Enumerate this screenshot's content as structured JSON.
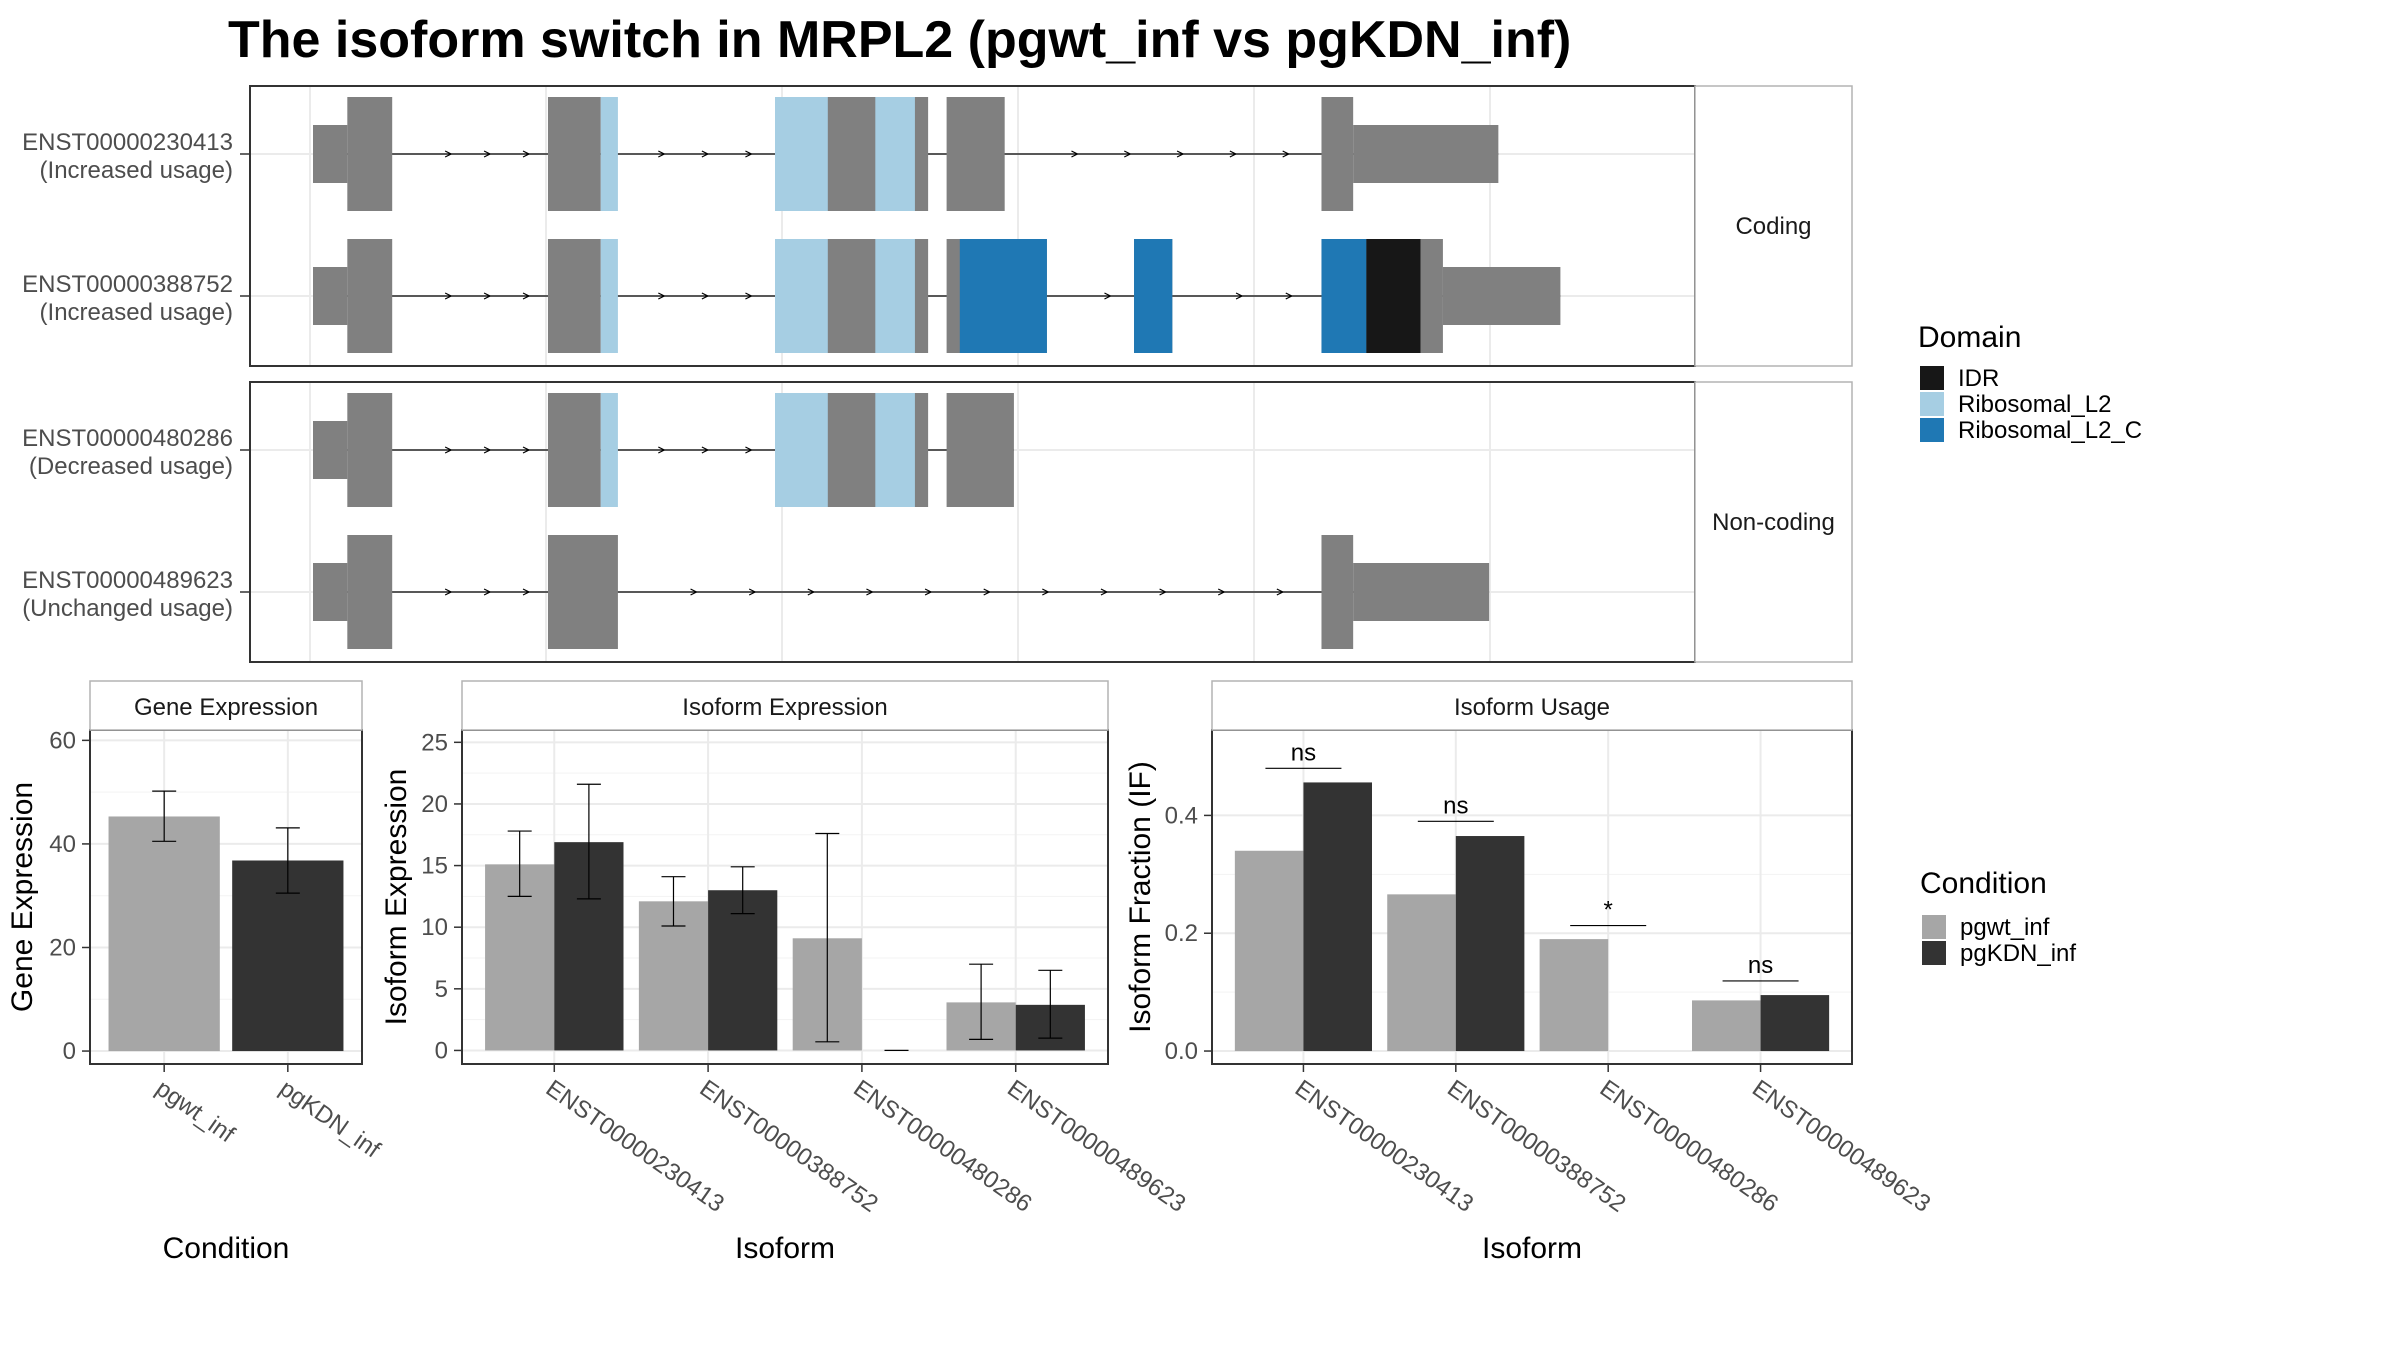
{
  "title": "The isoform switch in MRPL2 (pgwt_inf vs pgKDN_inf)",
  "colors": {
    "exon": "#808080",
    "grid": "#ebebeb",
    "strip_bg": "#ffffff",
    "panel_border": "#333333",
    "pgwt_inf": "#a6a6a6",
    "pgKDN_inf": "#333333"
  },
  "structure": {
    "x_range": [
      0,
      100
    ],
    "facets": [
      {
        "label": "Coding",
        "isoforms": [
          {
            "id": "ENST00000230413",
            "status": "(Increased usage)",
            "exons": [
              [
                0,
                2.6,
                "thin"
              ],
              [
                2.6,
                6,
                "thick"
              ],
              [
                17.8,
                21.8,
                "thick"
              ],
              [
                35,
                46.6,
                "thick"
              ],
              [
                48,
                52.4,
                "thick"
              ],
              [
                76.4,
                78.8,
                "thick"
              ],
              [
                78.8,
                89.8,
                "thin"
              ]
            ],
            "domains": [
              [
                21.8,
                23.1,
                "Ribosomal_L2"
              ],
              [
                35,
                39,
                "Ribosomal_L2"
              ],
              [
                42.6,
                45.6,
                "Ribosomal_L2"
              ]
            ]
          },
          {
            "id": "ENST00000388752",
            "status": "(Increased usage)",
            "exons": [
              [
                0,
                2.6,
                "thin"
              ],
              [
                2.6,
                6,
                "thick"
              ],
              [
                17.8,
                21.8,
                "thick"
              ],
              [
                35,
                46.6,
                "thick"
              ],
              [
                48,
                55.6,
                "thick"
              ],
              [
                62.2,
                65.1,
                "thick"
              ],
              [
                76.4,
                85.6,
                "thick"
              ],
              [
                85.6,
                94.5,
                "thin"
              ]
            ],
            "domains": [
              [
                21.8,
                23.1,
                "Ribosomal_L2"
              ],
              [
                35,
                39,
                "Ribosomal_L2"
              ],
              [
                42.6,
                45.6,
                "Ribosomal_L2"
              ],
              [
                49,
                55.6,
                "Ribosomal_L2_C"
              ],
              [
                62.2,
                65.1,
                "Ribosomal_L2_C"
              ],
              [
                76.4,
                79.8,
                "Ribosomal_L2_C"
              ],
              [
                79.8,
                83.9,
                "IDR"
              ]
            ]
          }
        ]
      },
      {
        "label": "Non-coding",
        "isoforms": [
          {
            "id": "ENST00000480286",
            "status": "(Decreased usage)",
            "exons": [
              [
                0,
                2.6,
                "thin"
              ],
              [
                2.6,
                6,
                "thick"
              ],
              [
                17.8,
                21.8,
                "thick"
              ],
              [
                35,
                46.6,
                "thick"
              ],
              [
                48,
                53.1,
                "thick"
              ]
            ],
            "domains": [
              [
                21.8,
                23.1,
                "Ribosomal_L2"
              ],
              [
                35,
                39,
                "Ribosomal_L2"
              ],
              [
                42.6,
                45.6,
                "Ribosomal_L2"
              ]
            ]
          },
          {
            "id": "ENST00000489623",
            "status": "(Unchanged usage)",
            "exons": [
              [
                0,
                2.6,
                "thin"
              ],
              [
                2.6,
                6,
                "thick"
              ],
              [
                17.8,
                23.1,
                "thick"
              ],
              [
                76.4,
                78.8,
                "thick"
              ],
              [
                78.8,
                89.1,
                "thin"
              ]
            ],
            "domains": []
          }
        ]
      }
    ]
  },
  "domain_legend": {
    "title": "Domain",
    "items": [
      {
        "name": "IDR",
        "color": "#171717"
      },
      {
        "name": "Ribosomal_L2",
        "color": "#a6cee3"
      },
      {
        "name": "Ribosomal_L2_C",
        "color": "#1f78b4"
      }
    ]
  },
  "condition_legend": {
    "title": "Condition",
    "items": [
      {
        "name": "pgwt_inf",
        "color": "#a6a6a6"
      },
      {
        "name": "pgKDN_inf",
        "color": "#333333"
      }
    ]
  },
  "chart_data": [
    {
      "type": "bar",
      "strip": "Gene Expression",
      "categories": [
        "pgwt_inf",
        "pgKDN_inf"
      ],
      "values": [
        45.3,
        36.8
      ],
      "error_bars": [
        [
          40.5,
          50.2
        ],
        [
          30.5,
          43.1
        ]
      ],
      "xlabel": "Condition",
      "ylabel": "Gene Expression",
      "ylim": [
        -2.5,
        62
      ],
      "yticks": [
        0,
        20,
        40,
        60
      ]
    },
    {
      "type": "bar",
      "strip": "Isoform Expression",
      "categories": [
        "ENST00000230413",
        "ENST00000388752",
        "ENST00000480286",
        "ENST00000489623"
      ],
      "series": [
        {
          "name": "pgwt_inf",
          "values": [
            15.1,
            12.1,
            9.1,
            3.9
          ],
          "error_bars": [
            [
              12.5,
              17.8
            ],
            [
              10.1,
              14.1
            ],
            [
              0.7,
              17.6
            ],
            [
              0.9,
              7.0
            ]
          ]
        },
        {
          "name": "pgKDN_inf",
          "values": [
            16.9,
            13.0,
            0,
            3.7
          ],
          "error_bars": [
            [
              12.3,
              21.6
            ],
            [
              11.1,
              14.9
            ],
            [
              0,
              0
            ],
            [
              1.0,
              6.5
            ]
          ]
        }
      ],
      "xlabel": "Isoform",
      "ylabel": "Isoform Expression",
      "ylim": [
        -1.1,
        26
      ],
      "yticks": [
        0,
        5,
        10,
        15,
        20,
        25
      ]
    },
    {
      "type": "bar",
      "strip": "Isoform Usage",
      "categories": [
        "ENST00000230413",
        "ENST00000388752",
        "ENST00000480286",
        "ENST00000489623"
      ],
      "series": [
        {
          "name": "pgwt_inf",
          "values": [
            0.34,
            0.266,
            0.19,
            0.086
          ]
        },
        {
          "name": "pgKDN_inf",
          "values": [
            0.456,
            0.365,
            0,
            0.095
          ]
        }
      ],
      "significance": [
        "ns",
        "ns",
        "*",
        "ns"
      ],
      "significance_y": [
        0.48,
        0.39,
        0.213,
        0.119
      ],
      "xlabel": "Isoform",
      "ylabel": "Isoform Fraction (IF)",
      "ylim": [
        -0.022,
        0.545
      ],
      "yticks": [
        "0.0",
        "0.2",
        "0.4"
      ],
      "ytick_values": [
        0,
        0.2,
        0.4
      ]
    }
  ]
}
